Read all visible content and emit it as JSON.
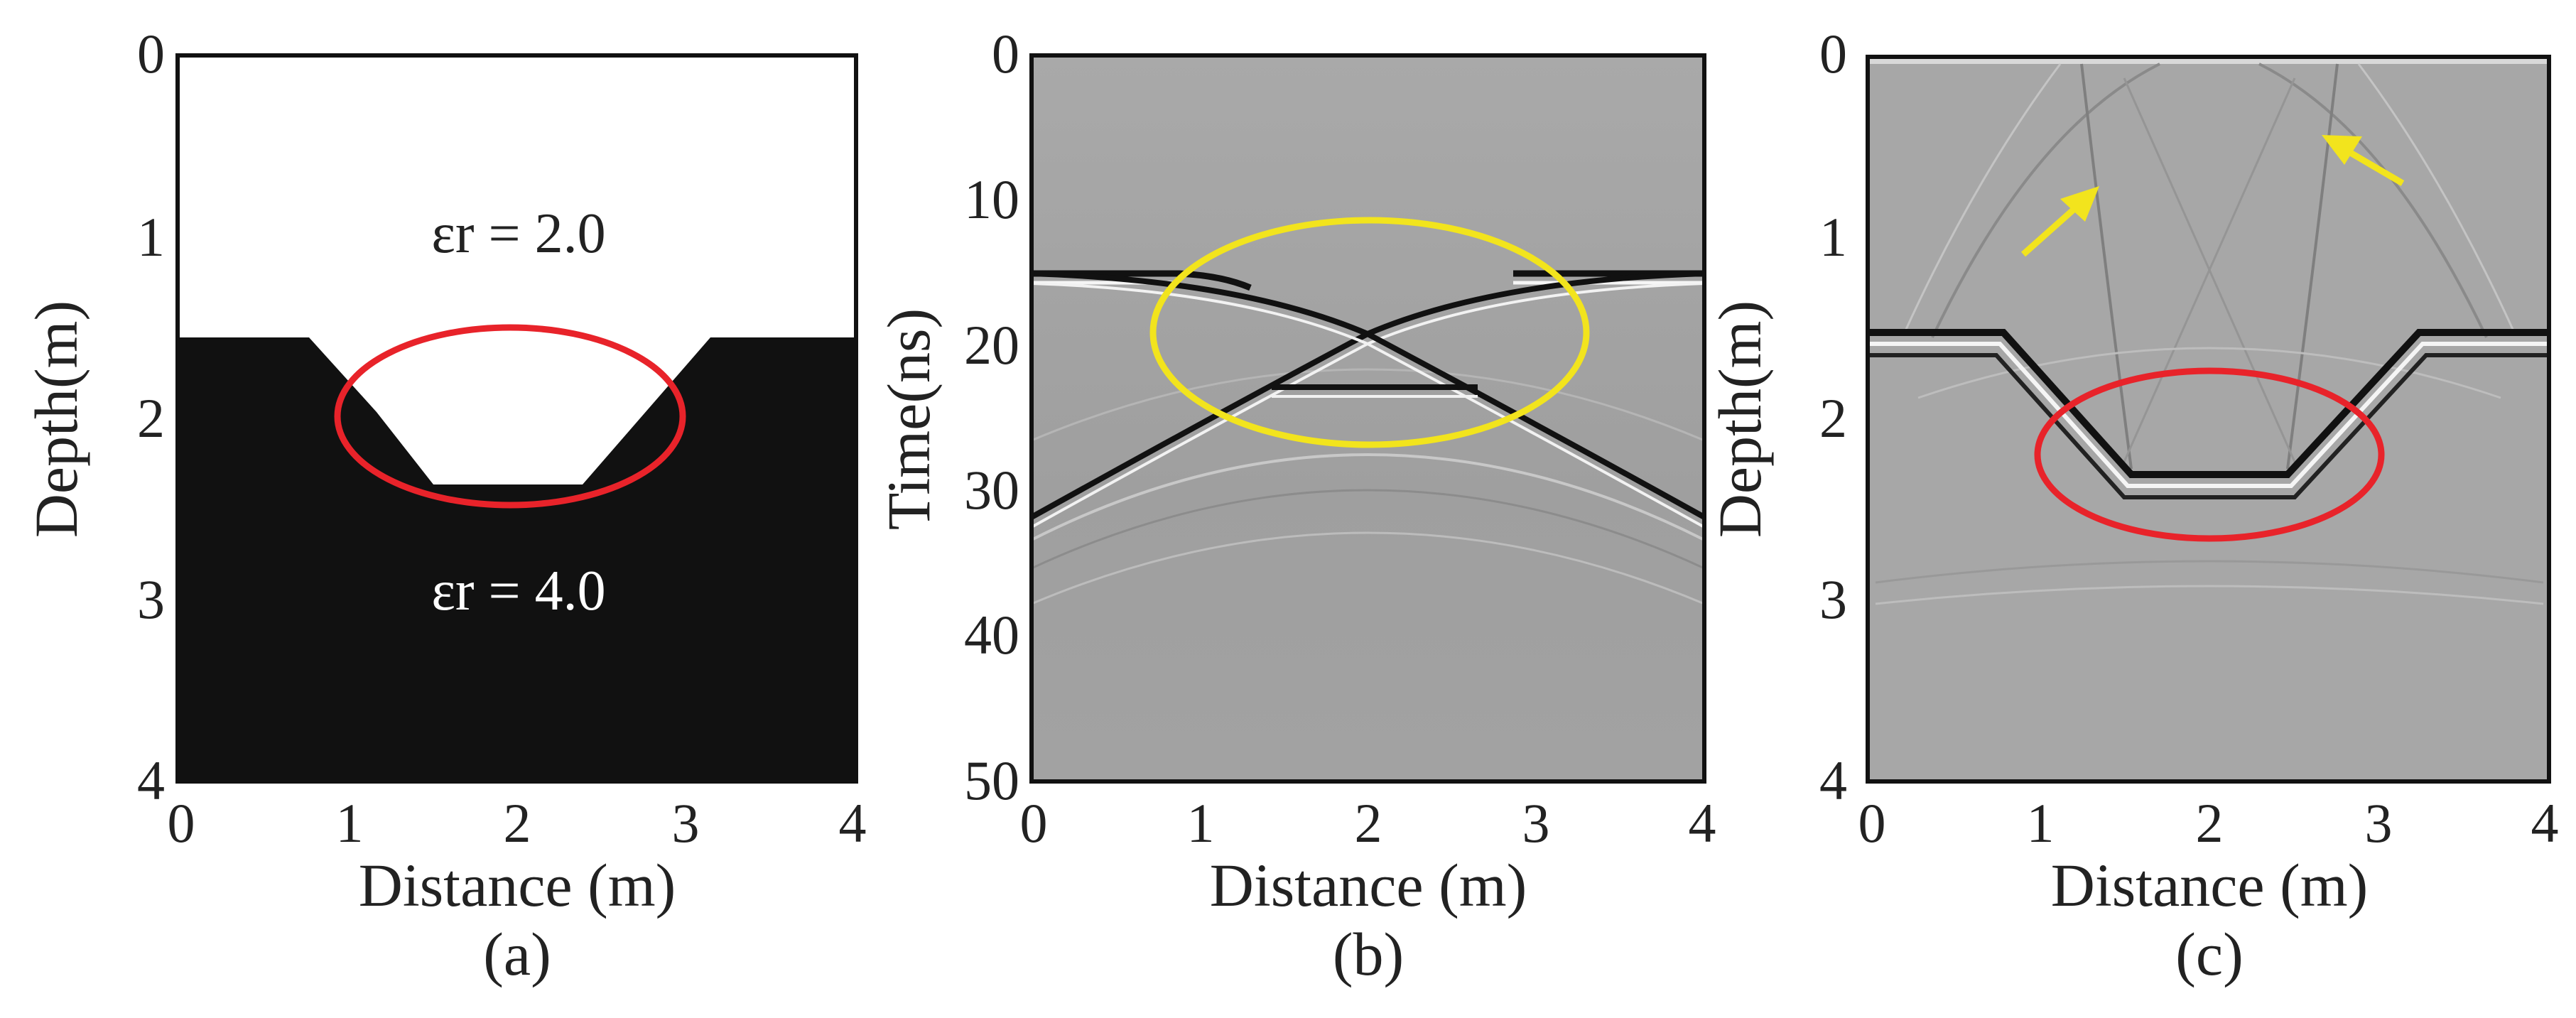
{
  "panels": [
    {
      "id": "a",
      "panel_label": "(a)",
      "xlabel": "Distance (m)",
      "ylabel": "Depth(m)",
      "xticks": [
        "0",
        "1",
        "2",
        "3",
        "4"
      ],
      "yticks": [
        "0",
        "1",
        "2",
        "3",
        "4"
      ],
      "upper_layer_label": "εr = 2.0",
      "lower_layer_label": "εr = 4.0",
      "highlight_color": "#e8232a"
    },
    {
      "id": "b",
      "panel_label": "(b)",
      "xlabel": "Distance (m)",
      "ylabel": "Time(ns)",
      "xticks": [
        "0",
        "1",
        "2",
        "3",
        "4"
      ],
      "yticks": [
        "0",
        "10",
        "20",
        "30",
        "40",
        "50"
      ],
      "highlight_color": "#f2e41d"
    },
    {
      "id": "c",
      "panel_label": "(c)",
      "xlabel": "Distance (m)",
      "ylabel": "Depth(m)",
      "xticks": [
        "0",
        "1",
        "2",
        "3",
        "4"
      ],
      "yticks": [
        "0",
        "1",
        "2",
        "3",
        "4"
      ],
      "highlight_color": "#e8232a",
      "arrow_color": "#f2e41d"
    }
  ],
  "chart_data": [
    {
      "type": "other",
      "description_kind": "permittivity model",
      "xlim": [
        0,
        4
      ],
      "ylim": [
        0,
        4
      ],
      "interface_depth": 1.55,
      "trench_polygon_points": [
        [
          0,
          1.55
        ],
        [
          0.8,
          1.55
        ],
        [
          1.55,
          2.35
        ],
        [
          2.45,
          2.35
        ],
        [
          3.2,
          1.55
        ],
        [
          4,
          1.55
        ]
      ],
      "layers": [
        {
          "name": "εr = 2.0",
          "value": 2.0
        },
        {
          "name": "εr = 4.0",
          "value": 4.0
        }
      ]
    },
    {
      "type": "other",
      "description_kind": "radargram",
      "xlim": [
        0,
        4
      ],
      "ylim": [
        0,
        50
      ],
      "flat_reflection_time": 15.5,
      "trench_bottom_time": 23,
      "crossing_point": [
        2,
        19.5
      ],
      "diffraction_branches": [
        {
          "x": [
            0,
            1,
            2,
            3,
            4
          ],
          "t": [
            32,
            25,
            19.5,
            17,
            15.5
          ]
        },
        {
          "x": [
            0,
            1,
            2,
            3,
            4
          ],
          "t": [
            15.5,
            17,
            19.5,
            25,
            32
          ]
        }
      ]
    },
    {
      "type": "other",
      "description_kind": "migrated depth image",
      "xlim": [
        0,
        4
      ],
      "ylim": [
        0,
        4
      ],
      "interface_depth": 1.55,
      "trench_bottom_depth": 2.3
    }
  ]
}
